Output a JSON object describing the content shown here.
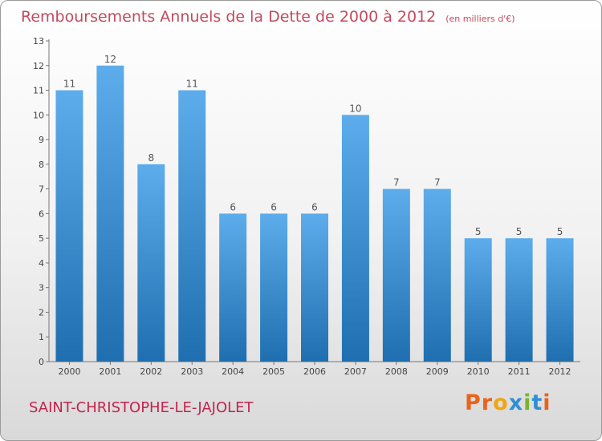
{
  "title": "Remboursements Annuels de la Dette de 2000 à 2012",
  "unit": "(en milliers d'€)",
  "commune": "SAINT-CHRISTOPHE-LE-JAJOLET",
  "logo": {
    "text": "Proxiti",
    "colors": [
      "#e8641b",
      "#e8641b",
      "#f2a413",
      "#2f8fd6",
      "#7ab32e",
      "#2f8fd6",
      "#e8641b"
    ]
  },
  "colors": {
    "bar_light": "#5dadec",
    "bar_dark": "#1f6fb0",
    "title": "#c24a5e",
    "commune": "#c0244f"
  },
  "chart_data": {
    "type": "bar",
    "title": "Remboursements Annuels de la Dette de 2000 à 2012",
    "xlabel": "",
    "ylabel": "",
    "categories": [
      "2000",
      "2001",
      "2002",
      "2003",
      "2004",
      "2005",
      "2006",
      "2007",
      "2008",
      "2009",
      "2010",
      "2011",
      "2012"
    ],
    "values": [
      11,
      12,
      8,
      11,
      6,
      6,
      6,
      10,
      7,
      7,
      5,
      5,
      5
    ],
    "ylim": [
      0,
      13
    ],
    "yticks": [
      0,
      1,
      2,
      3,
      4,
      5,
      6,
      7,
      8,
      9,
      10,
      11,
      12,
      13
    ],
    "grid": false
  }
}
